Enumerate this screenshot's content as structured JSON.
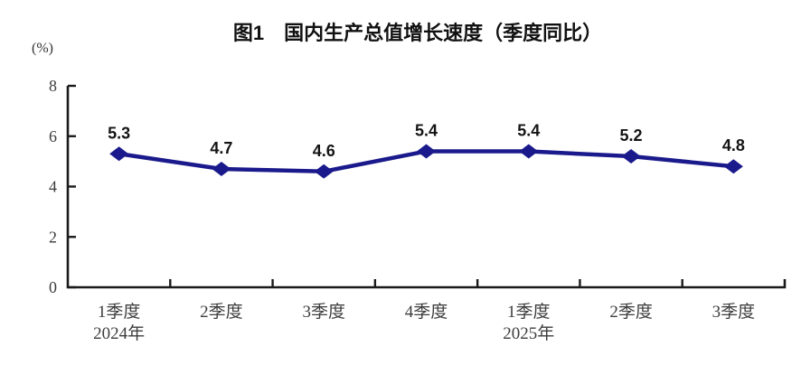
{
  "page": {
    "background": "#ffffff"
  },
  "chart_data": {
    "type": "line",
    "title": "图1　国内生产总值增长速度（季度同比）",
    "unit_label": "(%)",
    "categories": [
      "1季度",
      "2季度",
      "3季度",
      "4季度",
      "1季度",
      "2季度",
      "3季度"
    ],
    "year_labels": [
      {
        "index": 0,
        "text": "2024年"
      },
      {
        "index": 4,
        "text": "2025年"
      }
    ],
    "series": [
      {
        "name": "国内生产总值增长速度（季度同比）",
        "values": [
          5.3,
          4.7,
          4.6,
          5.4,
          5.4,
          5.2,
          4.8
        ]
      }
    ],
    "data_labels": [
      "5.3",
      "4.7",
      "4.6",
      "5.4",
      "5.4",
      "5.2",
      "4.8"
    ],
    "y_ticks": [
      0,
      2,
      4,
      6,
      8
    ],
    "ylim": [
      0,
      8
    ],
    "grid": false,
    "legend": "none",
    "line_color": "#1a1a8c",
    "marker_color": "#1a1a8c",
    "axis_color": "#1a1a1a",
    "tick_label_color": "#3d3d3d",
    "data_label_color": "#141414"
  }
}
